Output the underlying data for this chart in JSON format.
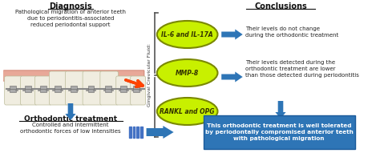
{
  "bg_color": "#ffffff",
  "title_diagnosis": "Diagnosis",
  "text_diagnosis": "Pathological migration of anterior teeth\ndue to periodontitis-associated\nreduced periodontal support",
  "title_orthodontic": "Orthodontic treatment",
  "text_orthodontic": "Controlled and intermittent\northodontic forces of low intensities",
  "gingival_label": "Gingival Crevicular Fluid:",
  "ellipse_labels": [
    "IL-6 and IL-17A",
    "MMP-8",
    "RANKL and OPG"
  ],
  "ellipse_color": "#c8f000",
  "ellipse_border": "#7a8800",
  "title_conclusions": "Conclusions",
  "conclusion1": "Their levels do not change\nduring the orthodontic treatment",
  "conclusion2": "Their levels detected during the\northodontic treatment are lower\nthan those detected during periodontitis",
  "box_text": "This orthodontic treatment is well tolerated\nby periodontally compromised anterior teeth\nwith pathological migration",
  "box_color": "#2e75b6",
  "box_text_color": "#ffffff",
  "arrow_color": "#2e75b6",
  "bracket_color": "#555555",
  "teeth_gum_color": "#e8a898",
  "teeth_color": "#f0ede0",
  "stripe_color": "#4472c4"
}
